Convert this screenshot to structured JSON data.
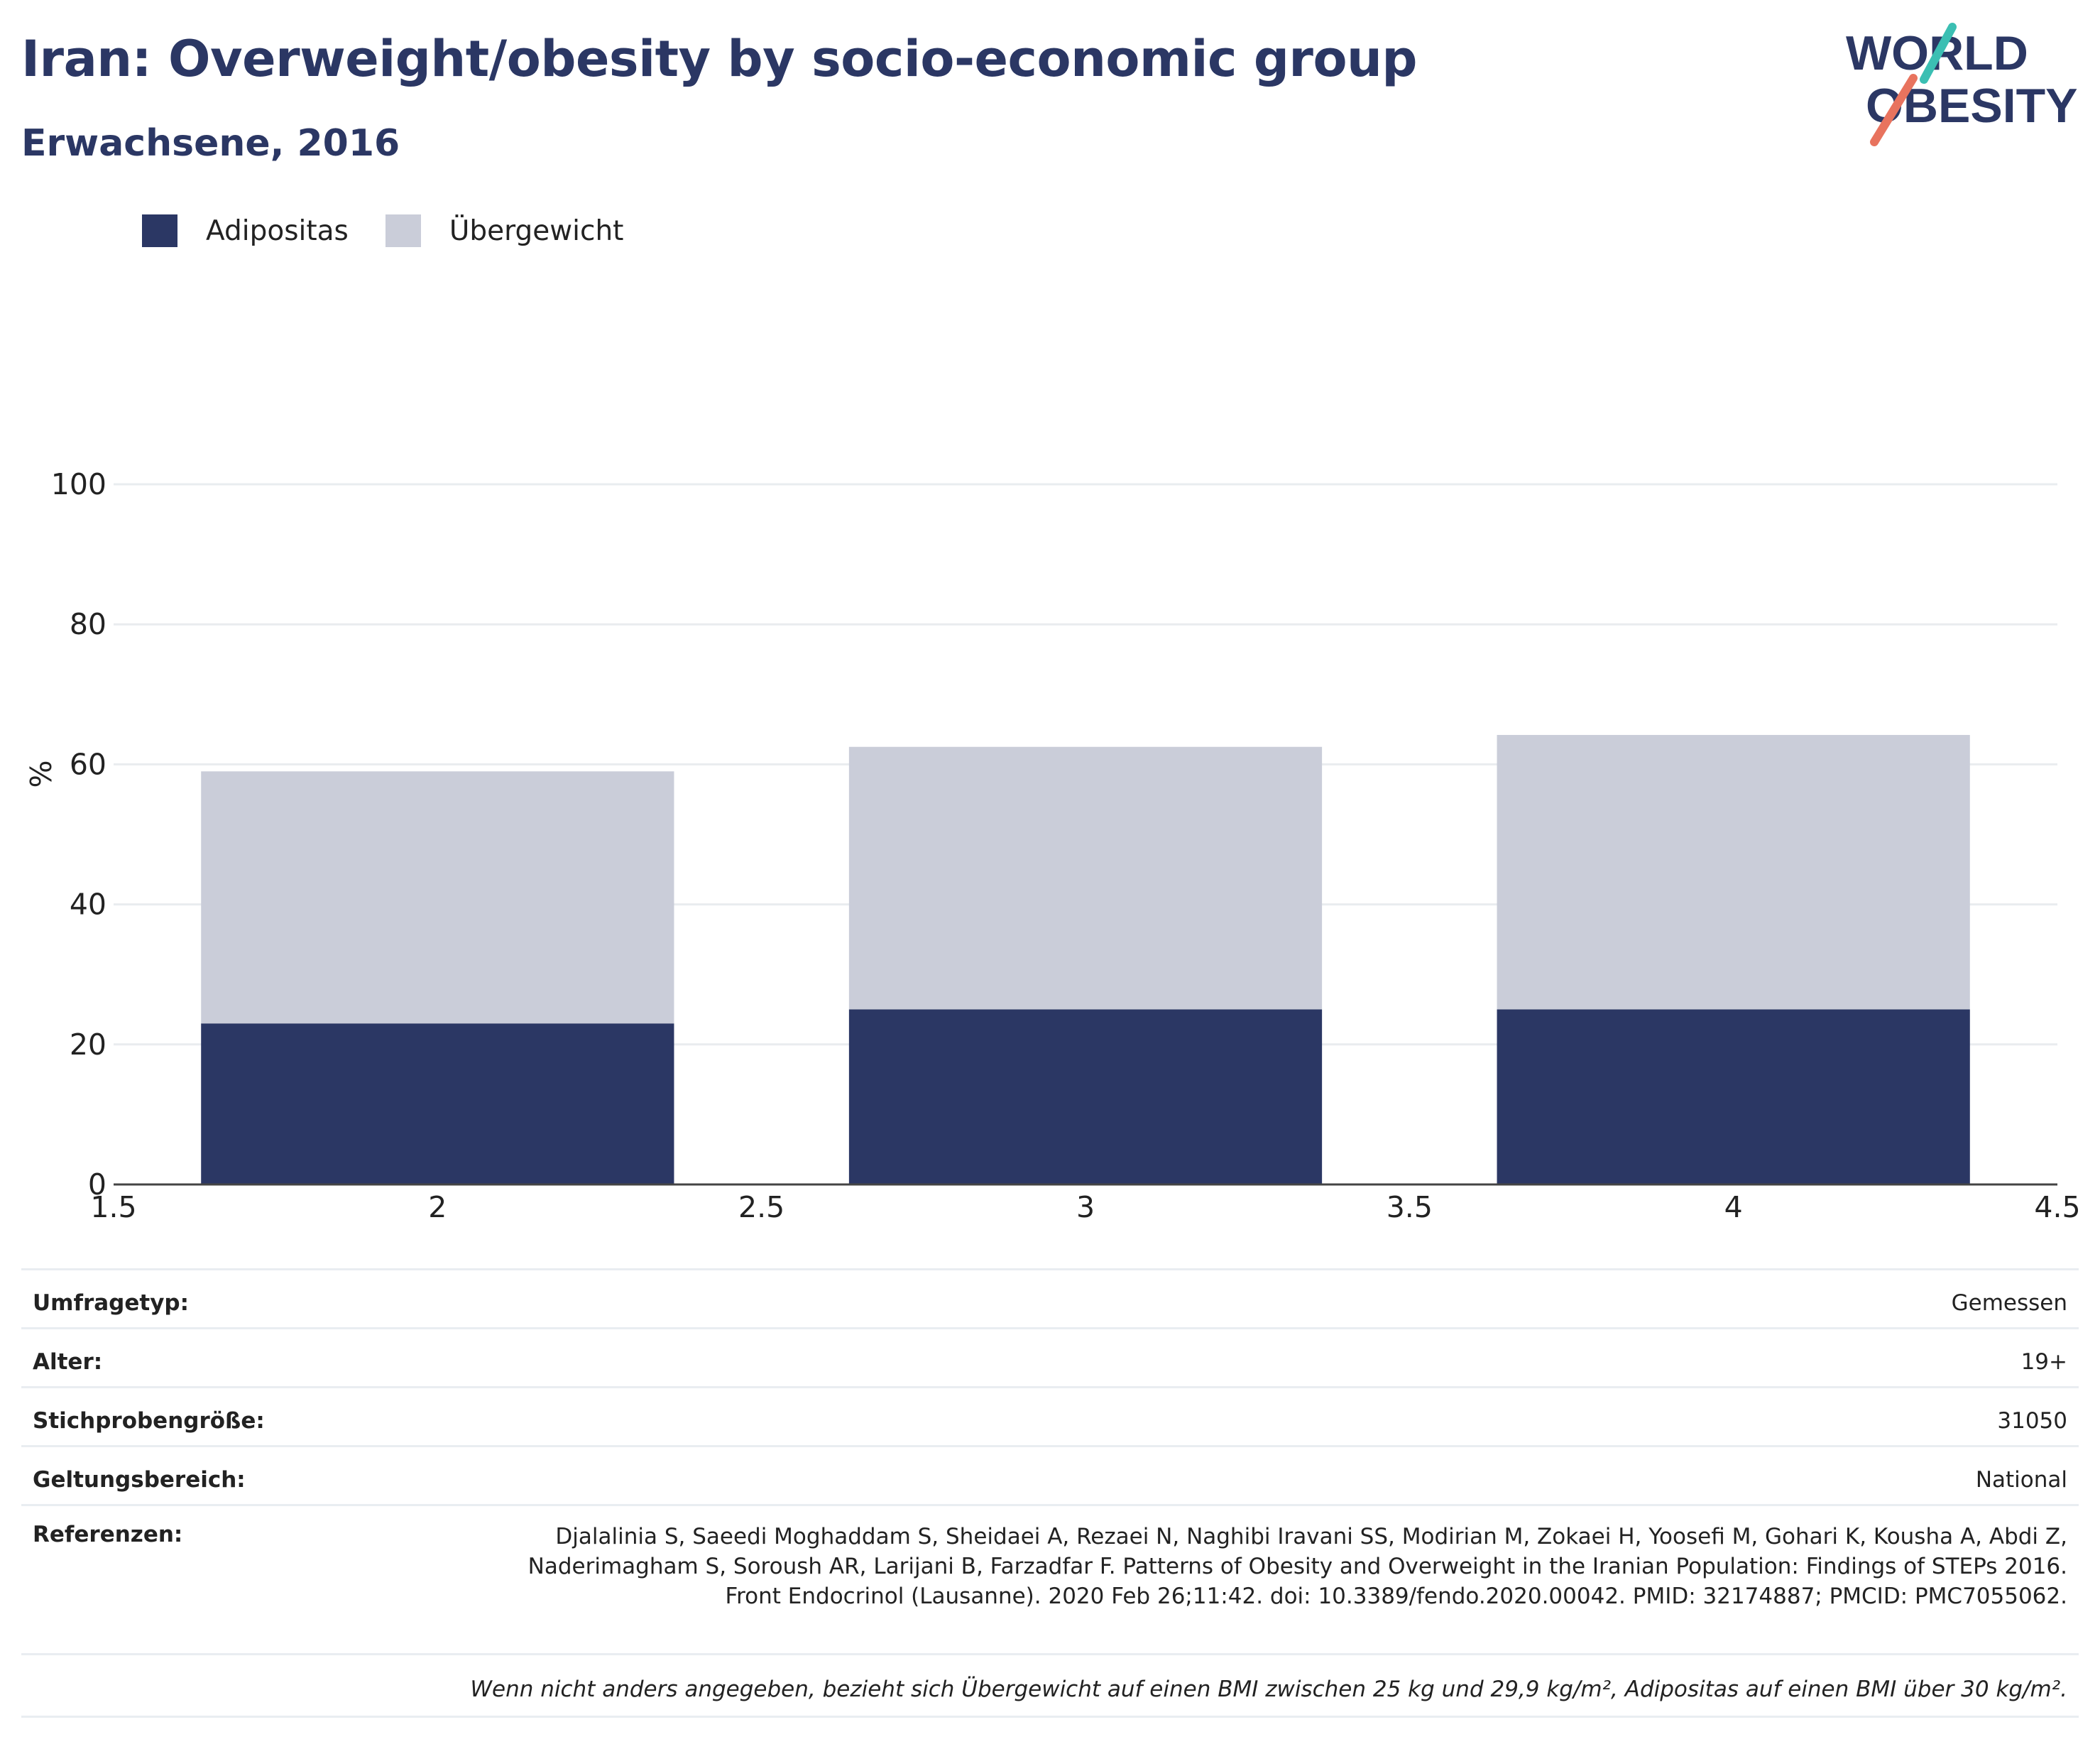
{
  "header": {
    "title": "Iran: Overweight/obesity by socio-economic group",
    "subtitle": "Erwachsene, 2016",
    "logo_line1": "WORLD",
    "logo_line2": "OBESITY"
  },
  "colors": {
    "adipositas": "#2b3764",
    "uebergewicht": "#cacdd9",
    "title": "#2b3764",
    "logo_teal": "#3bbfb3",
    "logo_coral": "#e8735e"
  },
  "legend": [
    {
      "label": "Adipositas",
      "color": "#2b3764"
    },
    {
      "label": "Übergewicht",
      "color": "#cacdd9"
    }
  ],
  "chart_data": {
    "type": "bar",
    "stacked": true,
    "x": [
      2,
      3,
      4
    ],
    "bar_width": 0.73,
    "series": [
      {
        "name": "Adipositas",
        "color": "#2b3764",
        "values": [
          23,
          25,
          25
        ]
      },
      {
        "name": "Übergewicht",
        "color": "#cacdd9",
        "values": [
          36,
          37.5,
          39.2
        ]
      }
    ],
    "xlim": [
      1.5,
      4.5
    ],
    "ylim": [
      0,
      100
    ],
    "xticks": [
      1.5,
      2,
      2.5,
      3,
      3.5,
      4,
      4.5
    ],
    "xtick_labels": [
      "1.5",
      "2",
      "2.5",
      "3",
      "3.5",
      "4",
      "4.5"
    ],
    "yticks": [
      0,
      20,
      40,
      60,
      80,
      100
    ],
    "ylabel": "%",
    "xlabel": "",
    "grid": true,
    "legend_position": "top-left"
  },
  "info": {
    "survey_type_label": "Umfragetyp:",
    "survey_type_value": "Gemessen",
    "age_label": "Alter:",
    "age_value": "19+",
    "sample_label": "Stichprobengröße:",
    "sample_value": "31050",
    "scope_label": "Geltungsbereich:",
    "scope_value": "National",
    "refs_label": "Referenzen:",
    "refs_value": "Djalalinia S, Saeedi Moghaddam S, Sheidaei A, Rezaei N, Naghibi Iravani SS, Modirian M, Zokaei H, Yoosefi M, Gohari K, Kousha A, Abdi Z, Naderimagham S, Soroush AR, Larijani B, Farzadfar F. Patterns of Obesity and Overweight in the Iranian Population: Findings of STEPs 2016. Front Endocrinol (Lausanne). 2020 Feb 26;11:42. doi: 10.3389/fendo.2020.00042. PMID: 32174887; PMCID: PMC7055062.",
    "note": "Wenn nicht anders angegeben, bezieht sich Übergewicht auf einen BMI zwischen 25 kg und 29,9 kg/m², Adipositas auf einen BMI über 30 kg/m²."
  }
}
